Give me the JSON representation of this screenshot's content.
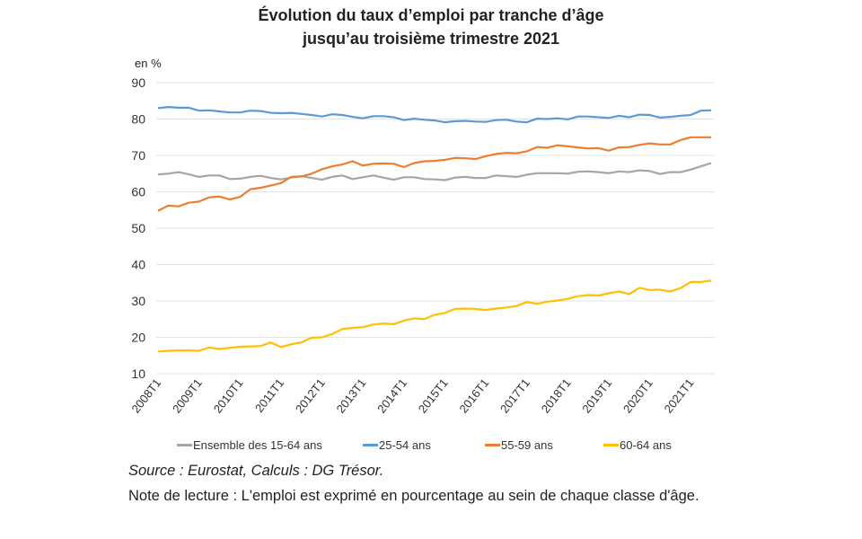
{
  "chart_data": {
    "type": "line",
    "title": "Évolution du taux d’emploi par tranche d’âge jusqu’au troisième trimestre 2021",
    "title_lines": [
      "Évolution du taux d’emploi par tranche d’âge",
      "jusqu’au troisième trimestre 2021"
    ],
    "ylabel": "en %",
    "xlabel": "",
    "ylim": [
      10,
      90
    ],
    "y_ticks": [
      10,
      20,
      30,
      40,
      50,
      60,
      70,
      80,
      90
    ],
    "grid": true,
    "legend_position": "bottom",
    "x_tick_labels": [
      "2008T1",
      "2009T1",
      "2010T1",
      "2011T1",
      "2012T1",
      "2013T1",
      "2014T1",
      "2015T1",
      "2016T1",
      "2017T1",
      "2018T1",
      "2019T1",
      "2020T1",
      "2021T1"
    ],
    "categories": [
      "2008T1",
      "2008T2",
      "2008T3",
      "2008T4",
      "2009T1",
      "2009T2",
      "2009T3",
      "2009T4",
      "2010T1",
      "2010T2",
      "2010T3",
      "2010T4",
      "2011T1",
      "2011T2",
      "2011T3",
      "2011T4",
      "2012T1",
      "2012T2",
      "2012T3",
      "2012T4",
      "2013T1",
      "2013T2",
      "2013T3",
      "2013T4",
      "2014T1",
      "2014T2",
      "2014T3",
      "2014T4",
      "2015T1",
      "2015T2",
      "2015T3",
      "2015T4",
      "2016T1",
      "2016T2",
      "2016T3",
      "2016T4",
      "2017T1",
      "2017T2",
      "2017T3",
      "2017T4",
      "2018T1",
      "2018T2",
      "2018T3",
      "2018T4",
      "2019T1",
      "2019T2",
      "2019T3",
      "2019T4",
      "2020T1",
      "2020T2",
      "2020T3",
      "2020T4",
      "2021T1",
      "2021T2",
      "2021T3"
    ],
    "series": [
      {
        "name": "Ensemble des 15-64 ans",
        "color": "#a5a5a5",
        "values": [
          64.8,
          65.0,
          65.4,
          64.8,
          64.1,
          64.5,
          64.5,
          63.5,
          63.6,
          64.1,
          64.4,
          63.8,
          63.4,
          63.9,
          64.3,
          63.8,
          63.3,
          64.1,
          64.5,
          63.5,
          64.0,
          64.5,
          63.9,
          63.3,
          64.0,
          64.0,
          63.5,
          63.4,
          63.2,
          63.9,
          64.1,
          63.8,
          63.8,
          64.5,
          64.3,
          64.1,
          64.7,
          65.1,
          65.1,
          65.1,
          65.0,
          65.5,
          65.6,
          65.4,
          65.1,
          65.6,
          65.4,
          65.9,
          65.7,
          64.9,
          65.4,
          65.4,
          66.1,
          67.0,
          67.9
        ]
      },
      {
        "name": "25-54 ans",
        "color": "#5b9bd5",
        "values": [
          83.0,
          83.3,
          83.1,
          83.1,
          82.3,
          82.4,
          82.1,
          81.8,
          81.8,
          82.3,
          82.2,
          81.7,
          81.6,
          81.7,
          81.4,
          81.1,
          80.7,
          81.3,
          81.1,
          80.6,
          80.2,
          80.8,
          80.8,
          80.5,
          79.7,
          80.1,
          79.8,
          79.6,
          79.1,
          79.4,
          79.5,
          79.3,
          79.2,
          79.7,
          79.8,
          79.3,
          79.1,
          80.1,
          80.0,
          80.2,
          79.9,
          80.7,
          80.7,
          80.5,
          80.3,
          80.9,
          80.5,
          81.2,
          81.1,
          80.4,
          80.6,
          80.9,
          81.1,
          82.3,
          82.4
        ]
      },
      {
        "name": "55-59 ans",
        "color": "#ed7d31",
        "values": [
          54.8,
          56.2,
          56.0,
          57.0,
          57.3,
          58.5,
          58.7,
          57.9,
          58.6,
          60.7,
          61.1,
          61.7,
          62.4,
          64.1,
          64.2,
          65.0,
          66.2,
          67.0,
          67.5,
          68.4,
          67.2,
          67.7,
          67.8,
          67.7,
          66.8,
          67.9,
          68.4,
          68.5,
          68.8,
          69.3,
          69.2,
          69.0,
          69.8,
          70.4,
          70.7,
          70.6,
          71.1,
          72.3,
          72.1,
          72.8,
          72.5,
          72.2,
          71.9,
          72.0,
          71.3,
          72.2,
          72.3,
          72.9,
          73.3,
          73.0,
          73.0,
          74.2,
          75.0,
          75.0,
          75.0
        ]
      },
      {
        "name": "60-64 ans",
        "color": "#ffc000",
        "values": [
          16.1,
          16.3,
          16.4,
          16.4,
          16.3,
          17.2,
          16.8,
          17.1,
          17.4,
          17.5,
          17.6,
          18.6,
          17.3,
          18.1,
          18.6,
          19.9,
          20.0,
          20.9,
          22.3,
          22.6,
          22.8,
          23.5,
          23.8,
          23.6,
          24.6,
          25.2,
          25.0,
          26.2,
          26.7,
          27.8,
          27.9,
          27.8,
          27.5,
          27.9,
          28.2,
          28.6,
          29.7,
          29.2,
          29.8,
          30.1,
          30.6,
          31.3,
          31.6,
          31.5,
          32.1,
          32.6,
          31.9,
          33.6,
          33.0,
          33.1,
          32.6,
          33.5,
          35.2,
          35.2,
          35.6
        ]
      }
    ]
  },
  "footer": {
    "source": "Source : Eurostat, Calculs : DG Trésor.",
    "note": "Note de lecture : L'emploi est exprimé en pourcentage au sein de chaque classe d'âge."
  }
}
